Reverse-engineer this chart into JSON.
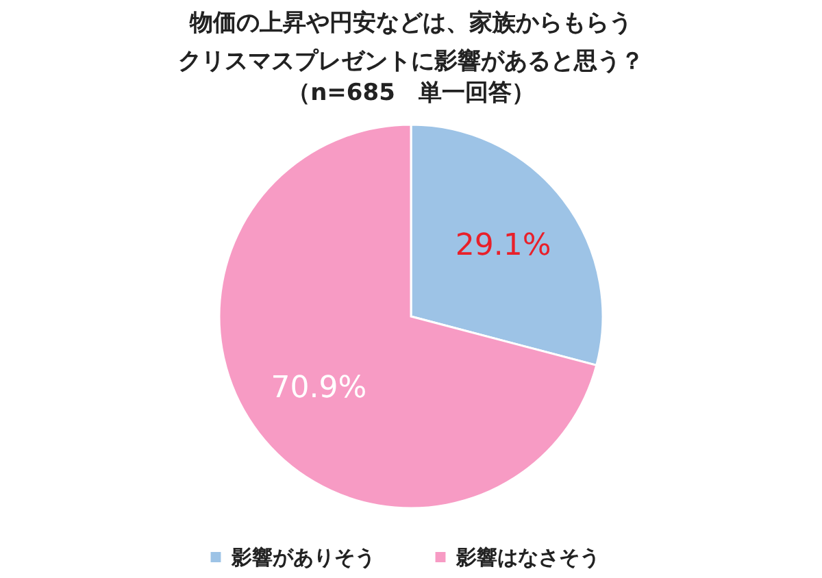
{
  "chart_data": {
    "type": "pie",
    "title": "物価の上昇や円安などは、家族からもらうクリスマスプレゼントに影響があると思う？",
    "subtitle": "（n=685　単一回答）",
    "categories": [
      "影響がありそう",
      "影響はなさそう"
    ],
    "values": [
      29.1,
      70.9
    ],
    "colors": [
      "#9dc3e6",
      "#f79bc4"
    ],
    "value_labels": [
      "29.1%",
      "70.9%"
    ],
    "legend": "bottom"
  }
}
